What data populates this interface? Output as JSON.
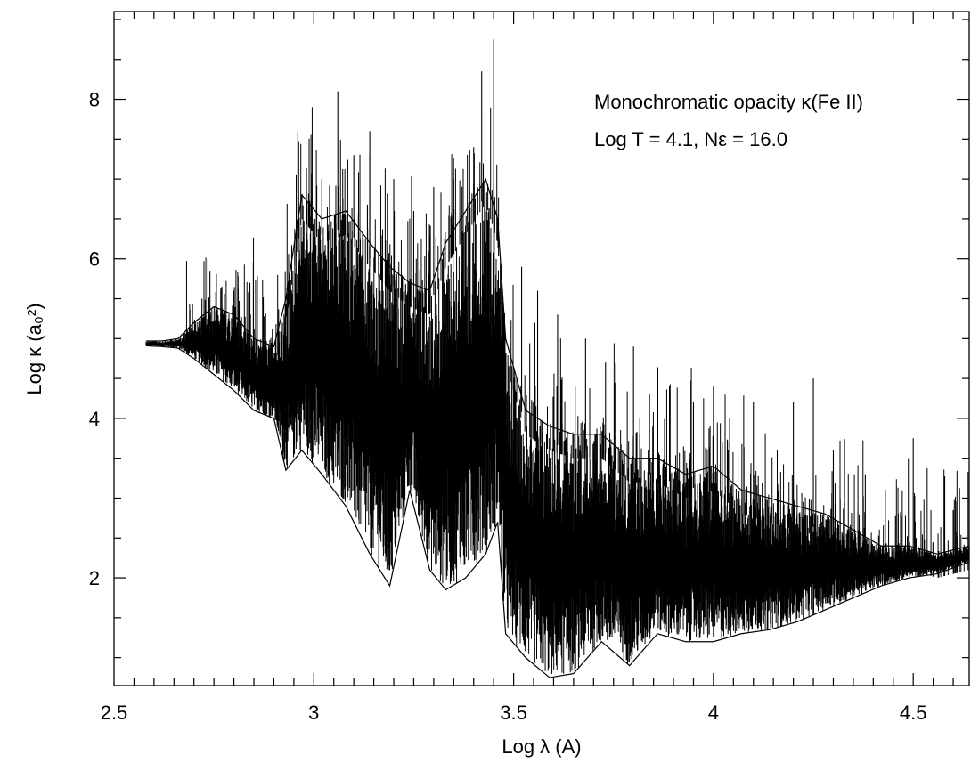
{
  "chart_data": {
    "type": "line",
    "title": "",
    "xlabel": "Log λ (A)",
    "ylabel": "Log κ (a₀²)",
    "xlim": [
      2.5,
      4.64
    ],
    "ylim": [
      0.65,
      9.1
    ],
    "xticks": [
      {
        "value": 2.5,
        "label": "2.5"
      },
      {
        "value": 3.0,
        "label": "3"
      },
      {
        "value": 3.5,
        "label": "3.5"
      },
      {
        "value": 4.0,
        "label": "4"
      },
      {
        "value": 4.5,
        "label": "4.5"
      }
    ],
    "yticks": [
      {
        "value": 2,
        "label": "2"
      },
      {
        "value": 4,
        "label": "4"
      },
      {
        "value": 6,
        "label": "6"
      },
      {
        "value": 8,
        "label": "8"
      }
    ],
    "grid": false,
    "legend": "none",
    "annotations": [
      "Monochromatic opacity κ(Fe II)",
      "Log T = 4.1, Nε = 16.0"
    ],
    "series": [
      {
        "color": "#000000",
        "envelope": [
          {
            "x": 2.58,
            "upper": 4.97,
            "lower": 4.91
          },
          {
            "x": 2.62,
            "upper": 4.97,
            "lower": 4.9
          },
          {
            "x": 2.66,
            "upper": 5.0,
            "lower": 4.88
          },
          {
            "x": 2.7,
            "upper": 5.2,
            "lower": 4.75
          },
          {
            "x": 2.75,
            "upper": 5.4,
            "lower": 4.55
          },
          {
            "x": 2.8,
            "upper": 5.3,
            "lower": 4.35
          },
          {
            "x": 2.85,
            "upper": 5.0,
            "lower": 4.1
          },
          {
            "x": 2.9,
            "upper": 4.9,
            "lower": 4.0
          },
          {
            "x": 2.93,
            "upper": 5.5,
            "lower": 3.35
          },
          {
            "x": 2.97,
            "upper": 6.8,
            "lower": 3.6
          },
          {
            "x": 3.02,
            "upper": 6.5,
            "lower": 3.3
          },
          {
            "x": 3.08,
            "upper": 6.6,
            "lower": 2.9
          },
          {
            "x": 3.14,
            "upper": 6.2,
            "lower": 2.3
          },
          {
            "x": 3.19,
            "upper": 5.9,
            "lower": 1.9
          },
          {
            "x": 3.24,
            "upper": 5.7,
            "lower": 3.1
          },
          {
            "x": 3.29,
            "upper": 5.6,
            "lower": 2.1
          },
          {
            "x": 3.33,
            "upper": 6.2,
            "lower": 1.85
          },
          {
            "x": 3.38,
            "upper": 6.6,
            "lower": 2.0
          },
          {
            "x": 3.43,
            "upper": 7.0,
            "lower": 2.3
          },
          {
            "x": 3.46,
            "upper": 6.5,
            "lower": 2.7
          },
          {
            "x": 3.48,
            "upper": 5.0,
            "lower": 1.3
          },
          {
            "x": 3.53,
            "upper": 4.1,
            "lower": 1.0
          },
          {
            "x": 3.59,
            "upper": 3.9,
            "lower": 0.75
          },
          {
            "x": 3.65,
            "upper": 3.8,
            "lower": 0.8
          },
          {
            "x": 3.72,
            "upper": 3.8,
            "lower": 1.2
          },
          {
            "x": 3.79,
            "upper": 3.5,
            "lower": 0.9
          },
          {
            "x": 3.86,
            "upper": 3.5,
            "lower": 1.3
          },
          {
            "x": 3.93,
            "upper": 3.3,
            "lower": 1.2
          },
          {
            "x": 4.0,
            "upper": 3.4,
            "lower": 1.2
          },
          {
            "x": 4.07,
            "upper": 3.1,
            "lower": 1.3
          },
          {
            "x": 4.14,
            "upper": 3.0,
            "lower": 1.35
          },
          {
            "x": 4.21,
            "upper": 2.9,
            "lower": 1.45
          },
          {
            "x": 4.28,
            "upper": 2.8,
            "lower": 1.6
          },
          {
            "x": 4.35,
            "upper": 2.6,
            "lower": 1.75
          },
          {
            "x": 4.42,
            "upper": 2.4,
            "lower": 1.9
          },
          {
            "x": 4.49,
            "upper": 2.4,
            "lower": 2.0
          },
          {
            "x": 4.56,
            "upper": 2.3,
            "lower": 2.05
          },
          {
            "x": 4.64,
            "upper": 2.4,
            "lower": 2.2
          }
        ],
        "peaks": [
          {
            "x": 2.72,
            "y": 5.5
          },
          {
            "x": 2.74,
            "y": 5.85
          },
          {
            "x": 2.77,
            "y": 5.65
          },
          {
            "x": 2.8,
            "y": 5.6
          },
          {
            "x": 2.84,
            "y": 5.7
          },
          {
            "x": 2.96,
            "y": 7.6
          },
          {
            "x": 3.02,
            "y": 7.0
          },
          {
            "x": 3.06,
            "y": 8.1
          },
          {
            "x": 3.1,
            "y": 7.3
          },
          {
            "x": 3.14,
            "y": 7.6
          },
          {
            "x": 3.2,
            "y": 7.0
          },
          {
            "x": 3.25,
            "y": 6.6
          },
          {
            "x": 3.3,
            "y": 6.9
          },
          {
            "x": 3.35,
            "y": 7.0
          },
          {
            "x": 3.4,
            "y": 7.4
          },
          {
            "x": 3.42,
            "y": 8.35
          },
          {
            "x": 3.45,
            "y": 8.75
          },
          {
            "x": 3.52,
            "y": 5.9
          },
          {
            "x": 3.56,
            "y": 5.6
          },
          {
            "x": 3.61,
            "y": 5.3
          },
          {
            "x": 3.68,
            "y": 5.0
          },
          {
            "x": 3.73,
            "y": 4.7
          },
          {
            "x": 3.8,
            "y": 4.9
          },
          {
            "x": 3.84,
            "y": 4.3
          },
          {
            "x": 3.89,
            "y": 4.4
          },
          {
            "x": 3.95,
            "y": 4.2
          },
          {
            "x": 4.0,
            "y": 4.4
          },
          {
            "x": 4.1,
            "y": 4.2
          },
          {
            "x": 4.2,
            "y": 4.2
          },
          {
            "x": 4.25,
            "y": 4.5
          },
          {
            "x": 4.3,
            "y": 3.6
          },
          {
            "x": 4.38,
            "y": 3.3
          },
          {
            "x": 4.5,
            "y": 3.75
          },
          {
            "x": 4.6,
            "y": 2.85
          }
        ]
      }
    ]
  }
}
